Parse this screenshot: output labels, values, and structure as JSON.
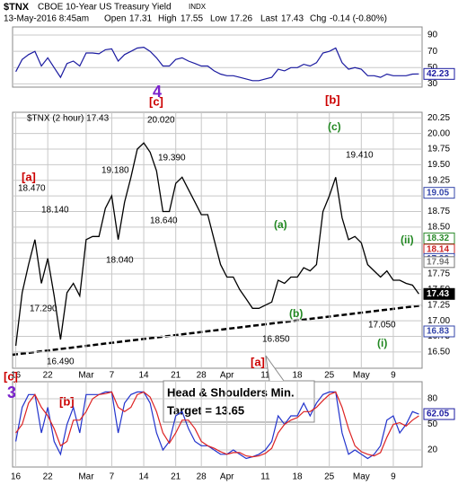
{
  "header": {
    "symbol": "$TNX",
    "name": "CBOE 10-Year US Treasury Yield",
    "exchange": "INDX",
    "date": "13-May-2016 8:45am",
    "open_label": "Open",
    "open": 17.31,
    "high_label": "High",
    "high": 17.55,
    "low_label": "Low",
    "low": 17.26,
    "last_label": "Last",
    "last": 17.43,
    "chg_label": "Chg",
    "chg": "-0.14 (-0.80%)"
  },
  "categories": [
    "16",
    null,
    null,
    null,
    null,
    "22",
    null,
    null,
    null,
    null,
    null,
    "Mar",
    null,
    null,
    null,
    "7",
    null,
    null,
    null,
    null,
    "14",
    null,
    null,
    null,
    null,
    "21",
    null,
    null,
    null,
    "28",
    null,
    null,
    null,
    "Apr",
    null,
    null,
    null,
    null,
    null,
    "11",
    null,
    null,
    null,
    null,
    "18",
    null,
    null,
    null,
    null,
    "25",
    null,
    null,
    null,
    null,
    "May",
    null,
    null,
    null,
    null,
    "9",
    null,
    null,
    null,
    null
  ],
  "chart_data": [
    {
      "type": "line",
      "ylim": [
        26,
        100
      ],
      "yticks": [
        30,
        50,
        70,
        90
      ],
      "grid": true,
      "series": [
        {
          "color": "#1a1aa0",
          "values": [
            45,
            60,
            66,
            70,
            52,
            62,
            50,
            38,
            55,
            58,
            52,
            68,
            68,
            67,
            72,
            73,
            58,
            66,
            70,
            74,
            75,
            70,
            62,
            52,
            52,
            60,
            62,
            58,
            55,
            52,
            52,
            46,
            42,
            40,
            40,
            38,
            36,
            34,
            34,
            36,
            38,
            48,
            46,
            50,
            50,
            54,
            52,
            56,
            68,
            70,
            74,
            56,
            48,
            50,
            48,
            40,
            40,
            38,
            42,
            40,
            40,
            40,
            42,
            42.23
          ]
        }
      ],
      "last_labels": [
        42.23
      ]
    },
    {
      "type": "line",
      "legend": "$TNX (2 hour) 17.43",
      "ylim": [
        16.24,
        20.34
      ],
      "yticks": [
        {
          "value": 16.5,
          "label": "16.50"
        },
        16.75,
        {
          "value": 17,
          "label": "17.00"
        },
        17.25,
        {
          "value": 17.5,
          "label": "17.50"
        },
        17.75,
        {
          "value": 18,
          "label": "18.00"
        },
        18.25,
        {
          "value": 18.5,
          "label": "18.50"
        },
        18.75,
        {
          "value": 19,
          "label": "19.00"
        },
        19.25,
        {
          "value": 19.5,
          "label": "19.50"
        },
        19.75,
        {
          "value": 20,
          "label": "20.00"
        },
        20.25
      ],
      "grid": true,
      "series": [
        {
          "color": "#000000",
          "values": [
            16.6,
            17.45,
            17.9,
            18.3,
            17.6,
            18.0,
            17.4,
            16.7,
            17.45,
            17.6,
            17.4,
            18.3,
            18.35,
            18.35,
            18.8,
            19.0,
            18.3,
            18.9,
            19.3,
            19.75,
            19.85,
            19.7,
            19.4,
            18.75,
            18.75,
            19.2,
            19.3,
            19.1,
            18.9,
            18.7,
            18.7,
            18.3,
            17.9,
            17.7,
            17.7,
            17.5,
            17.35,
            17.2,
            17.2,
            17.25,
            17.3,
            17.65,
            17.6,
            17.7,
            17.7,
            17.85,
            17.8,
            17.9,
            18.75,
            19.0,
            19.3,
            18.65,
            18.3,
            18.35,
            18.25,
            17.9,
            17.8,
            17.7,
            17.8,
            17.65,
            17.65,
            17.6,
            17.57,
            17.43
          ]
        }
      ],
      "last_labels": [
        19.05,
        18.32,
        18.14,
        17.99,
        17.94,
        17.43,
        16.83
      ],
      "last_label_colors": [
        "#3344aa",
        "#2a8a2a",
        "#cc2222",
        "#3344aa",
        "#777777",
        "#000000",
        "#3344aa"
      ],
      "annotations": [
        "20.020",
        "19.390",
        "19.180",
        "18.470",
        "18.140",
        "18.640",
        "18.040",
        "17.290",
        "16.490",
        "19.410",
        "16.850",
        "17.050",
        "[c]",
        "4",
        "[b]",
        "[a]",
        "(c)",
        "(a)",
        "(ii)",
        "(b)",
        "(i)",
        "[a]",
        "[c]",
        "3",
        "[b]",
        "Head & Shoulders Min.",
        "Target = 13.65"
      ]
    },
    {
      "type": "line",
      "ylim": [
        0,
        100
      ],
      "yticks": [
        20,
        50,
        80
      ],
      "grid": true,
      "series": [
        {
          "color": "#2233cc",
          "values": [
            30,
            70,
            85,
            85,
            40,
            70,
            30,
            15,
            50,
            70,
            40,
            85,
            85,
            85,
            88,
            88,
            40,
            75,
            85,
            88,
            88,
            75,
            40,
            20,
            30,
            60,
            65,
            45,
            30,
            25,
            25,
            20,
            15,
            15,
            20,
            15,
            10,
            12,
            15,
            20,
            30,
            60,
            50,
            60,
            60,
            75,
            60,
            75,
            85,
            88,
            88,
            40,
            15,
            20,
            15,
            10,
            15,
            25,
            55,
            60,
            40,
            50,
            65,
            62.05
          ]
        },
        {
          "color": "#dd2222",
          "values": [
            40,
            50,
            75,
            85,
            70,
            60,
            45,
            25,
            30,
            55,
            55,
            65,
            80,
            85,
            86,
            88,
            70,
            65,
            70,
            85,
            88,
            82,
            65,
            40,
            28,
            40,
            55,
            55,
            45,
            30,
            25,
            22,
            18,
            15,
            17,
            17,
            13,
            12,
            13,
            16,
            22,
            40,
            50,
            55,
            58,
            65,
            65,
            70,
            78,
            85,
            88,
            70,
            45,
            25,
            18,
            15,
            13,
            17,
            35,
            50,
            52,
            48,
            55,
            60
          ]
        }
      ],
      "last_labels": [
        62.05
      ]
    }
  ]
}
